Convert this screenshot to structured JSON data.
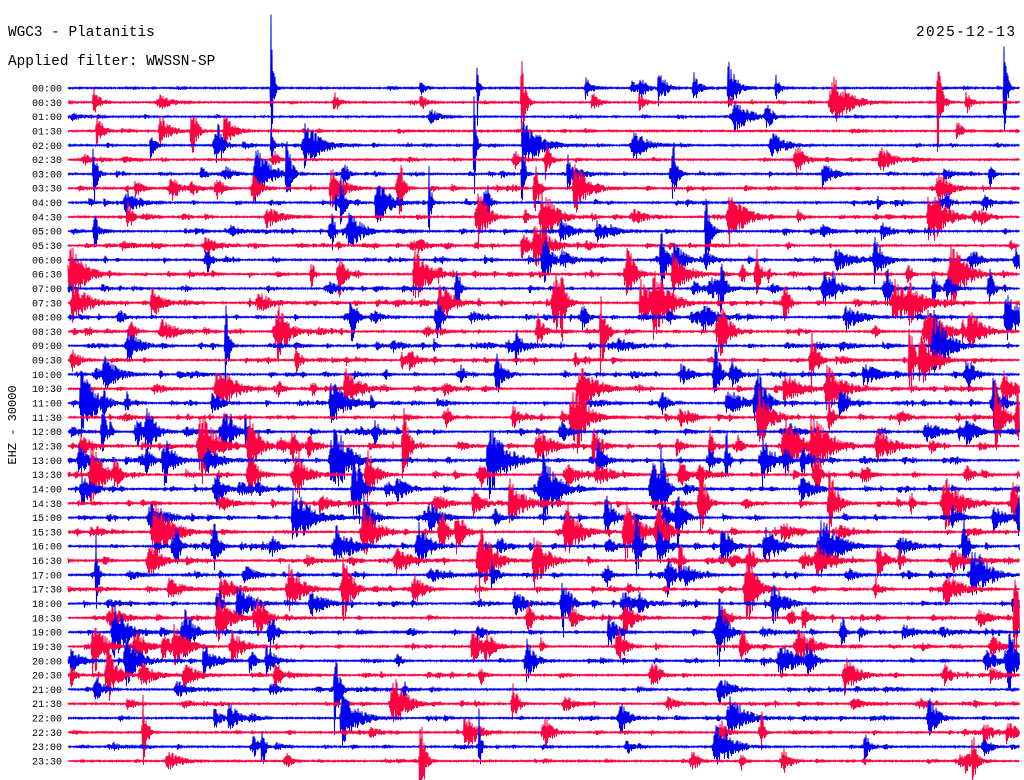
{
  "chart_data": {
    "type": "line",
    "title": "WGC3 - Platanitis",
    "date": "2025-12-13",
    "subtitle": "Applied filter: WWSSN-SP",
    "ylabel": "EHZ - 30000",
    "scale": 30000,
    "line_colors": [
      "#0000f0",
      "#ff0040"
    ],
    "rows": [
      {
        "label": "00:00",
        "level": 0.12,
        "events": [
          {
            "minute": 6.4,
            "amplitude": 184000,
            "duration_s": 8
          },
          {
            "minute": 11.1,
            "amplitude": 20000,
            "duration_s": 20
          },
          {
            "minute": 12.9,
            "amplitude": 88000,
            "duration_s": 6
          },
          {
            "minute": 16.3,
            "amplitude": 25000,
            "duration_s": 30
          },
          {
            "minute": 18.0,
            "amplitude": 31000,
            "duration_s": 30
          },
          {
            "minute": 18.6,
            "amplitude": 52000,
            "duration_s": 25
          },
          {
            "minute": 19.7,
            "amplitude": 38000,
            "duration_s": 25
          },
          {
            "minute": 20.8,
            "amplitude": 63000,
            "duration_s": 30
          },
          {
            "minute": 22.3,
            "amplitude": 31000,
            "duration_s": 20
          },
          {
            "minute": 29.5,
            "amplitude": 176000,
            "duration_s": 8
          }
        ]
      },
      {
        "label": "00:30",
        "level": 0.22,
        "events": [
          {
            "minute": 0.8,
            "amplitude": 46000,
            "duration_s": 20
          },
          {
            "minute": 11.1,
            "amplitude": 21000,
            "duration_s": 30
          },
          {
            "minute": 16.5,
            "amplitude": 29000,
            "duration_s": 25
          },
          {
            "minute": 18.0,
            "amplitude": 25000,
            "duration_s": 25
          },
          {
            "minute": 27.4,
            "amplitude": 115000,
            "duration_s": 15
          },
          {
            "minute": 28.3,
            "amplitude": 31000,
            "duration_s": 20
          }
        ]
      },
      {
        "label": "01:00",
        "level": 0.2
      },
      {
        "label": "01:30",
        "level": 0.25,
        "events": [
          {
            "minute": 0.9,
            "amplitude": 38000,
            "duration_s": 25
          },
          {
            "minute": 28.0,
            "amplitude": 25000,
            "duration_s": 25
          }
        ]
      },
      {
        "label": "02:00",
        "level": 0.35,
        "events": [
          {
            "minute": 2.6,
            "amplitude": 31000,
            "duration_s": 20
          },
          {
            "minute": 6.4,
            "amplitude": 63000,
            "duration_s": 10
          },
          {
            "minute": 12.8,
            "amplitude": 210000,
            "duration_s": 6
          }
        ]
      },
      {
        "label": "02:30",
        "level": 0.45
      },
      {
        "label": "03:00",
        "level": 0.55,
        "events": [
          {
            "minute": 0.8,
            "amplitude": 94000,
            "duration_s": 12
          },
          {
            "minute": 14.3,
            "amplitude": 84000,
            "duration_s": 10
          }
        ]
      },
      {
        "label": "03:30",
        "level": 0.6
      },
      {
        "label": "04:00",
        "level": 0.65
      },
      {
        "label": "04:30",
        "level": 0.65
      },
      {
        "label": "05:00",
        "level": 0.7
      },
      {
        "label": "05:30",
        "level": 0.7
      },
      {
        "label": "06:00",
        "level": 0.75
      },
      {
        "label": "06:30",
        "level": 0.75
      },
      {
        "label": "07:00",
        "level": 0.75
      },
      {
        "label": "07:30",
        "level": 0.8
      },
      {
        "label": "08:00",
        "level": 0.8
      },
      {
        "label": "08:30",
        "level": 0.8
      },
      {
        "label": "09:00",
        "level": 0.8
      },
      {
        "label": "09:30",
        "level": 0.8
      },
      {
        "label": "10:00",
        "level": 0.8
      },
      {
        "label": "10:30",
        "level": 0.85
      },
      {
        "label": "11:00",
        "level": 0.85
      },
      {
        "label": "11:30",
        "level": 0.85
      },
      {
        "label": "12:00",
        "level": 0.85
      },
      {
        "label": "12:30",
        "level": 0.85
      },
      {
        "label": "13:00",
        "level": 0.9
      },
      {
        "label": "13:30",
        "level": 0.9
      },
      {
        "label": "14:00",
        "level": 0.85
      },
      {
        "label": "14:30",
        "level": 0.85
      },
      {
        "label": "15:00",
        "level": 0.85
      },
      {
        "label": "15:30",
        "level": 0.85
      },
      {
        "label": "16:00",
        "level": 0.85
      },
      {
        "label": "16:30",
        "level": 0.85
      },
      {
        "label": "17:00",
        "level": 0.85
      },
      {
        "label": "17:30",
        "level": 0.8
      },
      {
        "label": "18:00",
        "level": 0.75
      },
      {
        "label": "18:30",
        "level": 0.75
      },
      {
        "label": "19:00",
        "level": 0.7
      },
      {
        "label": "19:30",
        "level": 0.7
      },
      {
        "label": "20:00",
        "level": 0.65
      },
      {
        "label": "20:30",
        "level": 0.6
      },
      {
        "label": "21:00",
        "level": 0.55
      },
      {
        "label": "21:30",
        "level": 0.55
      },
      {
        "label": "22:00",
        "level": 0.5
      },
      {
        "label": "22:30",
        "level": 0.45
      },
      {
        "label": "23:00",
        "level": 0.45,
        "events": [
          {
            "minute": 6.1,
            "amplitude": 94000,
            "duration_s": 10
          },
          {
            "minute": 12.95,
            "amplitude": 84000,
            "duration_s": 8
          },
          {
            "minute": 25.1,
            "amplitude": 38000,
            "duration_s": 20
          }
        ]
      },
      {
        "label": "23:30",
        "level": 0.4,
        "events": [
          {
            "minute": 28.5,
            "amplitude": 84000,
            "duration_s": 15
          }
        ]
      }
    ]
  }
}
